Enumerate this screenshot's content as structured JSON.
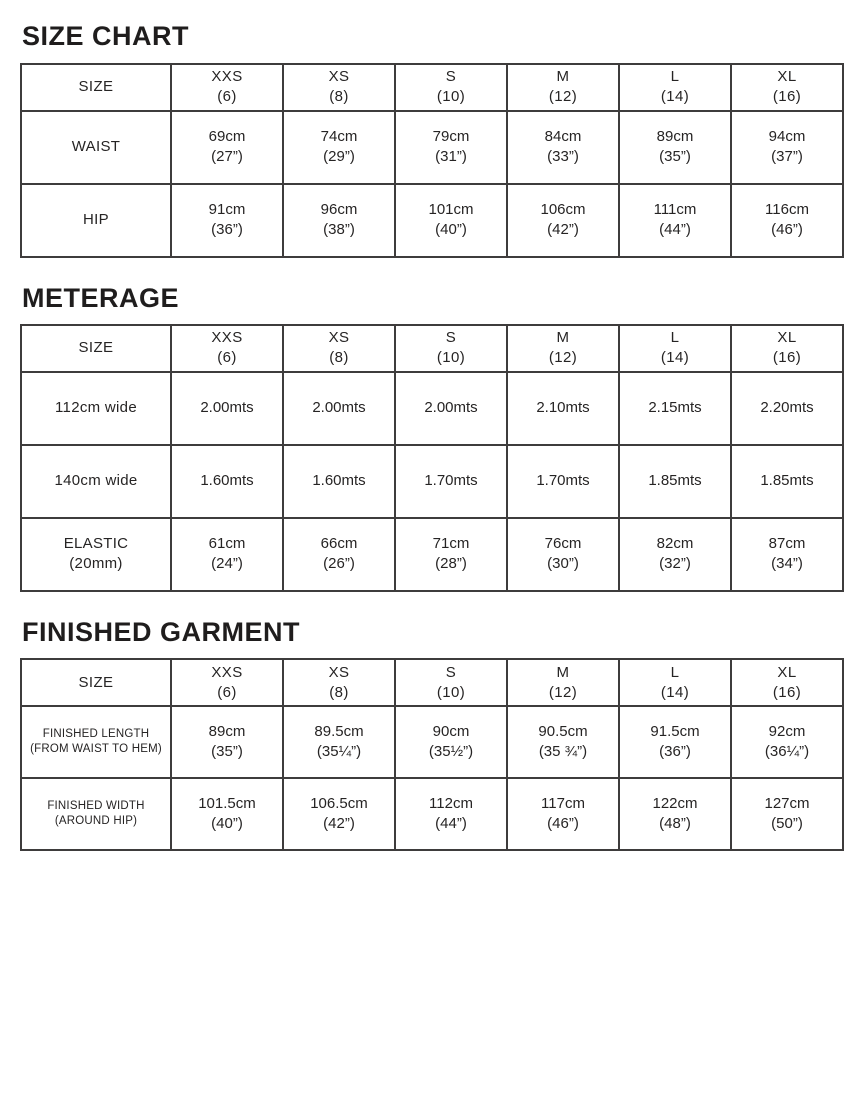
{
  "styles": {
    "background": "#ffffff",
    "text_color": "#262424",
    "border_color": "#3e3c3c"
  },
  "tables": [
    {
      "title": "SIZE CHART",
      "corner": [
        "SIZE"
      ],
      "columns": [
        [
          "XXS",
          "(6)"
        ],
        [
          "XS",
          "(8)"
        ],
        [
          "S",
          "(10)"
        ],
        [
          "M",
          "(12)"
        ],
        [
          "L",
          "(14)"
        ],
        [
          "XL",
          "(16)"
        ]
      ],
      "rows": [
        {
          "label": [
            "WAIST"
          ],
          "cells": [
            [
              "69cm",
              "(27”)"
            ],
            [
              "74cm",
              "(29”)"
            ],
            [
              "79cm",
              "(31”)"
            ],
            [
              "84cm",
              "(33”)"
            ],
            [
              "89cm",
              "(35”)"
            ],
            [
              "94cm",
              "(37”)"
            ]
          ]
        },
        {
          "label": [
            "HIP"
          ],
          "cells": [
            [
              "91cm",
              "(36”)"
            ],
            [
              "96cm",
              "(38”)"
            ],
            [
              "101cm",
              "(40”)"
            ],
            [
              "106cm",
              "(42”)"
            ],
            [
              "111cm",
              "(44”)"
            ],
            [
              "116cm",
              "(46”)"
            ]
          ]
        }
      ]
    },
    {
      "title": "METERAGE",
      "corner": [
        "SIZE"
      ],
      "columns": [
        [
          "XXS",
          "(6)"
        ],
        [
          "XS",
          "(8)"
        ],
        [
          "S",
          "(10)"
        ],
        [
          "M",
          "(12)"
        ],
        [
          "L",
          "(14)"
        ],
        [
          "XL",
          "(16)"
        ]
      ],
      "rows": [
        {
          "label": [
            "112cm wide"
          ],
          "cells": [
            [
              "2.00mts"
            ],
            [
              "2.00mts"
            ],
            [
              "2.00mts"
            ],
            [
              "2.10mts"
            ],
            [
              "2.15mts"
            ],
            [
              "2.20mts"
            ]
          ]
        },
        {
          "label": [
            "140cm wide"
          ],
          "cells": [
            [
              "1.60mts"
            ],
            [
              "1.60mts"
            ],
            [
              "1.70mts"
            ],
            [
              "1.70mts"
            ],
            [
              "1.85mts"
            ],
            [
              "1.85mts"
            ]
          ]
        },
        {
          "label": [
            "ELASTIC",
            "(20mm)"
          ],
          "cells": [
            [
              "61cm",
              "(24”)"
            ],
            [
              "66cm",
              "(26”)"
            ],
            [
              "71cm",
              "(28”)"
            ],
            [
              "76cm",
              "(30”)"
            ],
            [
              "82cm",
              "(32”)"
            ],
            [
              "87cm",
              "(34”)"
            ]
          ]
        }
      ]
    },
    {
      "title": "FINISHED GARMENT",
      "corner": [
        "SIZE"
      ],
      "columns": [
        [
          "XXS",
          "(6)"
        ],
        [
          "XS",
          "(8)"
        ],
        [
          "S",
          "(10)"
        ],
        [
          "M",
          "(12)"
        ],
        [
          "L",
          "(14)"
        ],
        [
          "XL",
          "(16)"
        ]
      ],
      "small_labels": true,
      "rows": [
        {
          "label": [
            "FINISHED LENGTH",
            "(FROM WAIST TO HEM)"
          ],
          "cells": [
            [
              "89cm",
              "(35”)"
            ],
            [
              "89.5cm",
              "(35¼”)"
            ],
            [
              "90cm",
              "(35½”)"
            ],
            [
              "90.5cm",
              "(35 ¾”)"
            ],
            [
              "91.5cm",
              "(36”)"
            ],
            [
              "92cm",
              "(36¼”)"
            ]
          ]
        },
        {
          "label": [
            "FINISHED WIDTH",
            "(AROUND HIP)"
          ],
          "cells": [
            [
              "101.5cm",
              "(40”)"
            ],
            [
              "106.5cm",
              "(42”)"
            ],
            [
              "112cm",
              "(44”)"
            ],
            [
              "117cm",
              "(46”)"
            ],
            [
              "122cm",
              "(48”)"
            ],
            [
              "127cm",
              "(50”)"
            ]
          ]
        }
      ]
    }
  ]
}
